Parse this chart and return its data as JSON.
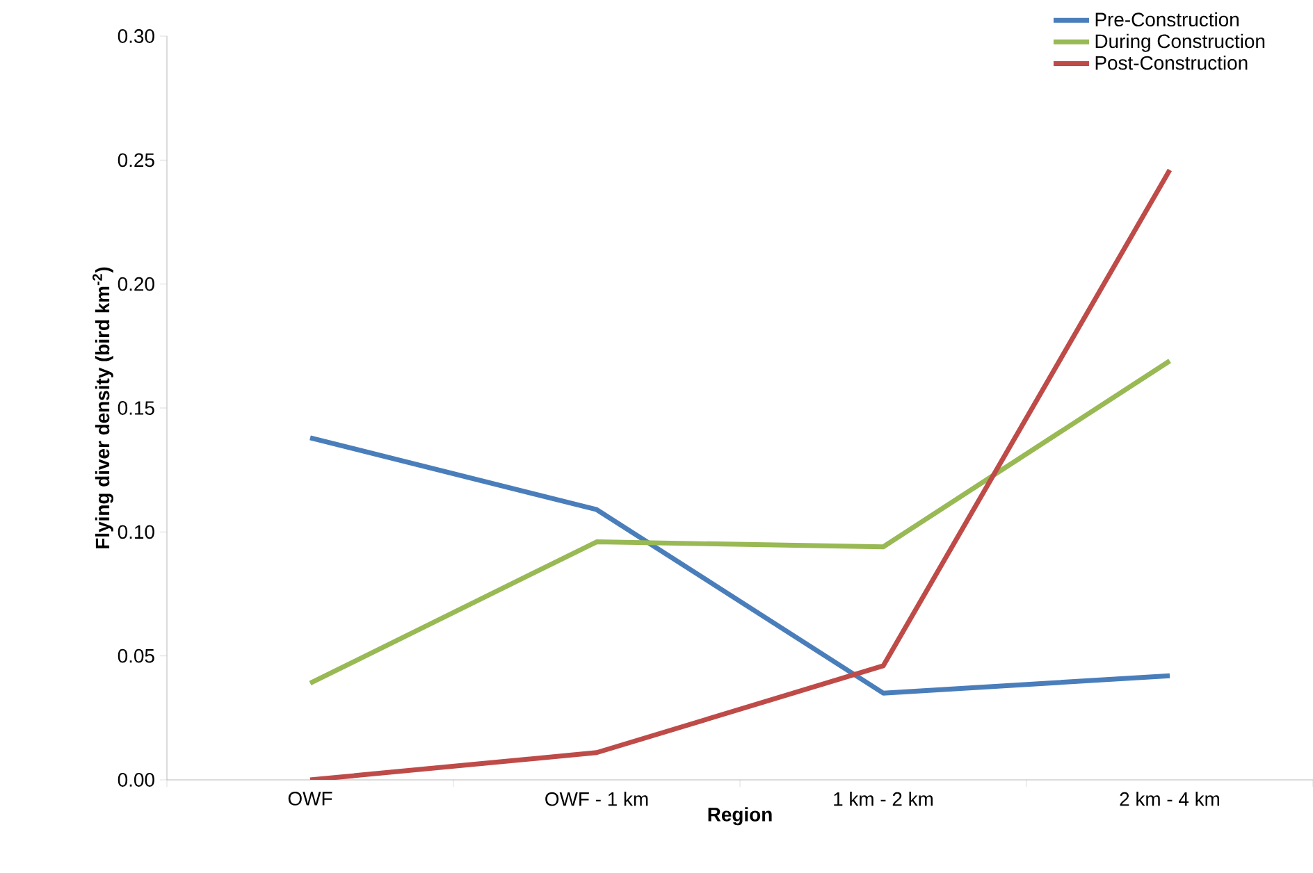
{
  "chart_data": {
    "type": "line",
    "xlabel": "Region",
    "ylabel": "Flying diver density (bird km$^{-2}$)",
    "categories": [
      "OWF",
      "OWF - 1 km",
      "1 km - 2 km",
      "2 km - 4 km"
    ],
    "series": [
      {
        "name": "Pre-Construction",
        "color": "#4a7ebb",
        "values": [
          0.138,
          0.109,
          0.035,
          0.042
        ]
      },
      {
        "name": "During Construction",
        "color": "#98b954",
        "values": [
          0.039,
          0.096,
          0.094,
          0.169
        ]
      },
      {
        "name": "Post-Construction",
        "color": "#be4b48",
        "values": [
          0.0,
          0.011,
          0.046,
          0.246
        ]
      }
    ],
    "ylim": [
      0,
      0.3
    ],
    "yticks": [
      {
        "value": 0,
        "label": "0.00"
      },
      {
        "value": 0.05,
        "label": "0.05"
      },
      {
        "value": 0.1,
        "label": "0.10"
      },
      {
        "value": 0.15,
        "label": "0.15"
      },
      {
        "value": 0.2,
        "label": "0.20"
      },
      {
        "value": 0.25,
        "label": "0.25"
      },
      {
        "value": 0.3,
        "label": "0.30"
      }
    ],
    "grid": false,
    "legend": "top right",
    "marker": "none",
    "line_style": "solid"
  }
}
